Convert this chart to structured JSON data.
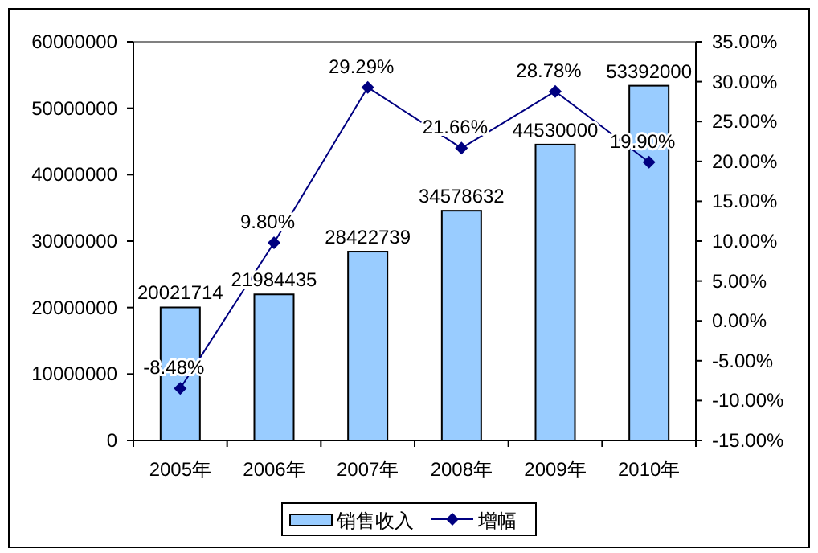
{
  "chart_data": {
    "type": "bar",
    "categories": [
      "2005年",
      "2006年",
      "2007年",
      "2008年",
      "2009年",
      "2010年"
    ],
    "series": [
      {
        "name": "销售收入",
        "color": "#99ccff",
        "values": [
          20021714,
          21984435,
          28422739,
          34578632,
          44530000,
          53392000
        ]
      },
      {
        "name": "增幅",
        "type": "line",
        "axis": "y2",
        "color": "#000080",
        "marker": "diamond",
        "values": [
          -8.48,
          9.8,
          29.29,
          21.66,
          28.78,
          19.9
        ],
        "value_labels": [
          "-8.48%",
          "9.80%",
          "29.29%",
          "21.66%",
          "28.78%",
          "19.90%"
        ]
      }
    ],
    "ylim": [
      0,
      60000000
    ],
    "yticks": [
      0,
      10000000,
      20000000,
      30000000,
      40000000,
      50000000,
      60000000
    ],
    "y2lim": [
      -15,
      35
    ],
    "y2ticks": [
      {
        "value": -15,
        "label": "-15.00%"
      },
      {
        "value": -10,
        "label": "-10.00%"
      },
      {
        "value": -5,
        "label": "-5.00%"
      },
      {
        "value": 0,
        "label": "0.00%"
      },
      {
        "value": 5,
        "label": "5.00%"
      },
      {
        "value": 10,
        "label": "10.00%"
      },
      {
        "value": 15,
        "label": "15.00%"
      },
      {
        "value": 20,
        "label": "20.00%"
      },
      {
        "value": 25,
        "label": "25.00%"
      },
      {
        "value": 30,
        "label": "30.00%"
      },
      {
        "value": 35,
        "label": "35.00%"
      }
    ],
    "data_labels": true,
    "legend": "bottom"
  }
}
